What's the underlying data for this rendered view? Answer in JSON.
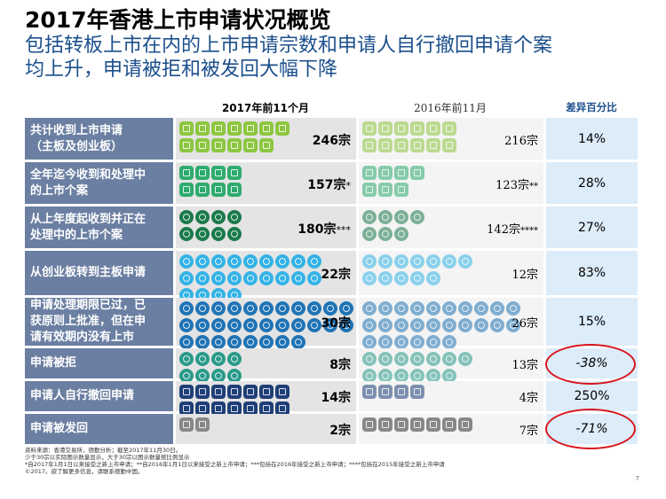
{
  "title": "2017年香港上市申请状况概览",
  "subtitle_line1": "包括转板上市在内的上市申请宗数和申请人自行撤回申请个案",
  "subtitle_line2": "均上升，申请被拒和被发回大幅下降",
  "headers": {
    "y2017": "2017年前11个月",
    "y2016": "2016年前11月",
    "diff": "差异百分比"
  },
  "chart_data": {
    "type": "table",
    "categories": [
      "共计收到上市申请（主板及创业板）",
      "全年迄今收到和处理中的上市个案",
      "从上年度起收到并正在处理中的上市个案",
      "从创业板转到主板申请",
      "申请处理期限已过，已获原则上批准，但在申请有效期内没有上市",
      "申请被拒",
      "申请人自行撤回申请",
      "申请被发回"
    ],
    "series": [
      {
        "name": "2017年前11个月",
        "values": [
          246,
          157,
          180,
          22,
          30,
          8,
          14,
          2
        ]
      },
      {
        "name": "2016年前11月",
        "values": [
          216,
          123,
          142,
          12,
          26,
          13,
          4,
          7
        ]
      }
    ],
    "diff_percent": [
      "14%",
      "28%",
      "27%",
      "83%",
      "15%",
      "-38%",
      "250%",
      "-71%"
    ]
  },
  "rows": [
    {
      "label_l1": "共计收到上市申请",
      "label_l2": "（主板及创业板）",
      "label_l3": "",
      "label_l4": "",
      "v2017": "246",
      "s2017": "宗",
      "m2017": "",
      "v2016": "216",
      "s2016": "宗",
      "m2016": "",
      "diff": "14%"
    },
    {
      "label_l1": "全年迄今收到和处理中",
      "label_l2": "的上市个案",
      "label_l3": "",
      "label_l4": "",
      "v2017": "157",
      "s2017": "宗",
      "m2017": "*",
      "v2016": "123",
      "s2016": "宗",
      "m2016": "**",
      "diff": "28%"
    },
    {
      "label_l1": "从上年度起收到并正在",
      "label_l2": "处理中的上市个案",
      "label_l3": "",
      "label_l4": "",
      "v2017": "180",
      "s2017": "宗",
      "m2017": "***",
      "v2016": "142",
      "s2016": "宗",
      "m2016": "****",
      "diff": "27%"
    },
    {
      "label_l1": "从创业板转到主板申请",
      "label_l2": "",
      "label_l3": "",
      "label_l4": "",
      "v2017": "22",
      "s2017": "宗",
      "m2017": "",
      "v2016": "12",
      "s2016": "宗",
      "m2016": "",
      "diff": "83%"
    },
    {
      "label_l1": "申请处理期限已过，已",
      "label_l2": "获原则上批准，但在申",
      "label_l3": "请有效期内没有上市",
      "label_l4": "",
      "v2017": "30",
      "s2017": "宗",
      "m2017": "",
      "v2016": "26",
      "s2016": "宗",
      "m2016": "",
      "diff": "15%"
    },
    {
      "label_l1": "申请被拒",
      "label_l2": "",
      "label_l3": "",
      "label_l4": "",
      "v2017": "8",
      "s2017": "宗",
      "m2017": "",
      "v2016": "13",
      "s2016": "宗",
      "m2016": "",
      "diff": "-38%"
    },
    {
      "label_l1": "申请人自行撤回申请",
      "label_l2": "",
      "label_l3": "",
      "label_l4": "",
      "v2017": "14",
      "s2017": "宗",
      "m2017": "",
      "v2016": "4",
      "s2016": "宗",
      "m2016": "",
      "diff": "250%"
    },
    {
      "label_l1": "申请被发回",
      "label_l2": "",
      "label_l3": "",
      "label_l4": "",
      "v2017": "2",
      "s2017": "宗",
      "m2017": "",
      "v2016": "7",
      "s2016": "宗",
      "m2016": "",
      "diff": "-71%"
    }
  ],
  "colors": {
    "row0": "#8cc63f",
    "row1": "#2eab6e",
    "row2": "#1a7a4c",
    "row3": "#33b3e6",
    "row4": "#1f74b5",
    "row5": "#2a9a8a",
    "row6": "#1e3f78",
    "row7": "#888888",
    "highlight": "#d9141b"
  },
  "notes": {
    "line1": "资料来源：香港交易所，德勤分析；截至2017年11月30日。",
    "line2": "少于30宗以实际图示数量显示，大于30宗以图示数量按比例显示",
    "line3": "*自2017年1月1日以来接受之新上市申请；**自2016年1月1日以来接受之新上市申请；***包括在2016年接受之新上市申请；****包括在2015年接受之新上市申请",
    "line4": "©2017。欲了解更多信息，请联系德勤中国。"
  },
  "page_number": "7"
}
